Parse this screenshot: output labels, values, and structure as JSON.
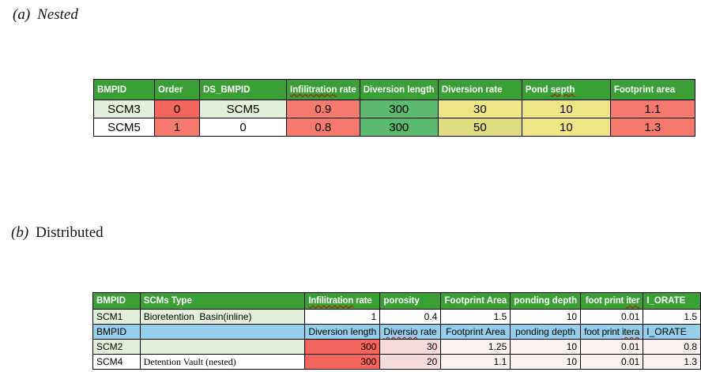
{
  "captions": {
    "a_label": "(a)",
    "a_title": "Nested",
    "b_label": "(b)",
    "b_title": "Distributed"
  },
  "colors": {
    "header": "#3AA035",
    "lightgreen": "#E2EFDA",
    "red": "#F4655D",
    "salmon": "#F5796C",
    "green": "#5BBA6F",
    "yellow": "#EFE584",
    "yellowgreen": "#DFDD81",
    "blue": "#95CEEB",
    "pink": "#F6DBDA",
    "faint": "#FBF1F0",
    "white": "#FFFFFF",
    "squiggle": "#C00000"
  },
  "table_a": {
    "header": [
      {
        "parts": [
          {
            "t": "BMPID"
          }
        ]
      },
      {
        "parts": [
          {
            "t": "Order"
          }
        ]
      },
      {
        "parts": [
          {
            "t": "DS_BMPID"
          }
        ]
      },
      {
        "parts": [
          {
            "t": "Infilitration",
            "sq": true
          },
          {
            "t": " rate"
          }
        ]
      },
      {
        "parts": [
          {
            "t": "Diversion length"
          }
        ]
      },
      {
        "parts": [
          {
            "t": "Diversion rate"
          }
        ]
      },
      {
        "parts": [
          {
            "t": "Pond "
          },
          {
            "t": "septh",
            "sq": true
          }
        ]
      },
      {
        "parts": [
          {
            "t": "Footprint area"
          }
        ]
      }
    ],
    "rows": [
      {
        "cells": [
          {
            "t": "SCM3",
            "bg": "lightgreen"
          },
          {
            "t": "0",
            "bg": "red"
          },
          {
            "t": "SCM5",
            "bg": "lightgreen"
          },
          {
            "t": "0.9",
            "bg": "salmon"
          },
          {
            "t": "300",
            "bg": "green"
          },
          {
            "t": "30",
            "bg": "yellow"
          },
          {
            "t": "10",
            "bg": "yellow"
          },
          {
            "t": "1.1",
            "bg": "salmon"
          }
        ]
      },
      {
        "cells": [
          {
            "t": "SCM5",
            "bg": "white"
          },
          {
            "t": "1",
            "bg": "salmon"
          },
          {
            "t": "0",
            "bg": "white"
          },
          {
            "t": "0.8",
            "bg": "salmon"
          },
          {
            "t": "300",
            "bg": "green"
          },
          {
            "t": "50",
            "bg": "yellowgreen"
          },
          {
            "t": "10",
            "bg": "yellow"
          },
          {
            "t": "1.3",
            "bg": "salmon"
          }
        ]
      }
    ]
  },
  "table_b": {
    "header": [
      {
        "parts": [
          {
            "t": "BMPID"
          }
        ]
      },
      {
        "parts": [
          {
            "t": "SCMs Type"
          }
        ]
      },
      {
        "parts": [
          {
            "t": "Infilitration",
            "sq": true
          },
          {
            "t": " rate"
          }
        ],
        "small": true
      },
      {
        "parts": [
          {
            "t": "porosity"
          }
        ]
      },
      {
        "parts": [
          {
            "t": "Footprint Area"
          }
        ],
        "align": "right"
      },
      {
        "parts": [
          {
            "t": "ponding depth"
          }
        ],
        "align": "right"
      },
      {
        "parts": [
          {
            "t": "foot print "
          },
          {
            "t": "iter",
            "sq": true
          }
        ],
        "small": true,
        "align": "right"
      },
      {
        "parts": [
          {
            "t": "I_ORATE"
          }
        ]
      }
    ],
    "rows": [
      {
        "cells": [
          {
            "t": "SCM1",
            "bg": "lightgreen"
          },
          {
            "t": "Bioretention  Basin(inline)",
            "bg": "lightgreen"
          },
          {
            "t": "1",
            "bg": "white",
            "align": "right"
          },
          {
            "t": "0.4",
            "bg": "white",
            "align": "right"
          },
          {
            "t": "1.5",
            "bg": "white",
            "align": "right"
          },
          {
            "t": "10",
            "bg": "white",
            "align": "right"
          },
          {
            "t": "0.01",
            "bg": "white",
            "align": "right"
          },
          {
            "t": "1.5",
            "bg": "white",
            "align": "right"
          }
        ]
      },
      {
        "cells": [
          {
            "t": "BMPID",
            "bg": "blue"
          },
          {
            "t": "",
            "bg": "blue"
          },
          {
            "t": "Diversion length",
            "bg": "blue",
            "align": "right"
          },
          {
            "parts": [
              {
                "t": "Diversio",
                "sq": true
              },
              {
                "t": " rate"
              }
            ],
            "bg": "blue"
          },
          {
            "t": "Footprint Area",
            "bg": "blue",
            "align": "center"
          },
          {
            "t": "ponding depth",
            "bg": "blue",
            "align": "center"
          },
          {
            "parts": [
              {
                "t": "foot print "
              },
              {
                "t": "itera",
                "sq": true
              }
            ],
            "bg": "blue",
            "align": "center",
            "small": true
          },
          {
            "t": "I_ORATE",
            "bg": "blue"
          }
        ]
      },
      {
        "cells": [
          {
            "t": "SCM2",
            "bg": "lightgreen"
          },
          {
            "t": "",
            "bg": "lightgreen"
          },
          {
            "t": "300",
            "bg": "red",
            "align": "right"
          },
          {
            "t": "30",
            "bg": "pink",
            "align": "right"
          },
          {
            "t": "1.25",
            "bg": "faint",
            "align": "right"
          },
          {
            "t": "10",
            "bg": "faint",
            "align": "right"
          },
          {
            "t": "0.01",
            "bg": "faint",
            "align": "right"
          },
          {
            "t": "0.8",
            "bg": "faint",
            "align": "right"
          }
        ]
      },
      {
        "cells": [
          {
            "t": "SCM4",
            "bg": "white"
          },
          {
            "t": "Detention Vault (nested)",
            "bg": "white",
            "serif": true
          },
          {
            "t": "300",
            "bg": "red",
            "align": "right"
          },
          {
            "t": "20",
            "bg": "pink",
            "align": "right"
          },
          {
            "t": "1.1",
            "bg": "faint",
            "align": "right"
          },
          {
            "t": "10",
            "bg": "faint",
            "align": "right"
          },
          {
            "t": "0.01",
            "bg": "faint",
            "align": "right"
          },
          {
            "t": "1.3",
            "bg": "faint",
            "align": "right"
          }
        ]
      }
    ]
  }
}
